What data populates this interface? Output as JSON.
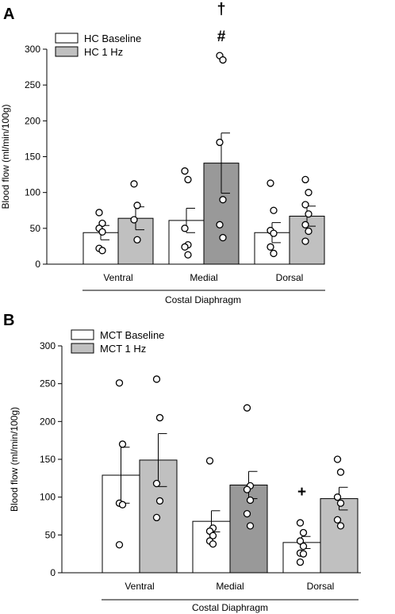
{
  "chart_data": [
    {
      "panel_label": "A",
      "type": "bar",
      "categories": [
        "Ventral",
        "Medial",
        "Dorsal"
      ],
      "xlabel": "Costal Diaphragm",
      "ylabel": "Blood flow (ml/min/100g)",
      "ylim": [
        0,
        300
      ],
      "yticks": [
        0,
        50,
        100,
        150,
        200,
        250,
        300
      ],
      "legend_position": "top-left",
      "series": [
        {
          "name": "HC Baseline",
          "color": "#ffffff",
          "values": [
            44,
            61,
            44
          ],
          "sem": [
            10,
            17,
            14
          ],
          "points": [
            [
              72,
              57,
              50,
              45,
              22,
              19
            ],
            [
              130,
              118,
              50,
              27,
              24,
              13
            ],
            [
              113,
              75,
              47,
              43,
              24,
              15
            ]
          ]
        },
        {
          "name": "HC 1 Hz",
          "color": [
            "#c0c0c0",
            "#999999",
            "#c0c0c0"
          ],
          "values": [
            64,
            141,
            67
          ],
          "sem": [
            16,
            42,
            14
          ],
          "points": [
            [
              112,
              82,
              62,
              34
            ],
            [
              291,
              285,
              170,
              90,
              55,
              37
            ],
            [
              118,
              100,
              83,
              70,
              55,
              46,
              32
            ]
          ]
        }
      ],
      "annotations": [
        {
          "category": "Medial",
          "text": "#"
        },
        {
          "category": "Medial",
          "text": "†"
        }
      ]
    },
    {
      "panel_label": "B",
      "type": "bar",
      "categories": [
        "Ventral",
        "Medial",
        "Dorsal"
      ],
      "xlabel": "Costal Diaphragm",
      "ylabel": "Blood flow (ml/min/100g)",
      "ylim": [
        0,
        300
      ],
      "yticks": [
        0,
        50,
        100,
        150,
        200,
        250,
        300
      ],
      "legend_position": "top-left",
      "series": [
        {
          "name": "MCT Baseline",
          "color": "#ffffff",
          "values": [
            129,
            68,
            40
          ],
          "sem": [
            37,
            14,
            8
          ],
          "points": [
            [
              251,
              170,
              92,
              90,
              37
            ],
            [
              148,
              59,
              55,
              49,
              42,
              38
            ],
            [
              66,
              53,
              42,
              35,
              26,
              25,
              14
            ]
          ]
        },
        {
          "name": "MCT 1 Hz",
          "color": [
            "#c0c0c0",
            "#999999",
            "#c0c0c0"
          ],
          "values": [
            149,
            116,
            98
          ],
          "sem": [
            35,
            18,
            15
          ],
          "points": [
            [
              256,
              205,
              118,
              95,
              73
            ],
            [
              218,
              115,
              110,
              96,
              78,
              62
            ],
            [
              150,
              133,
              100,
              92,
              70,
              62
            ]
          ]
        }
      ],
      "annotations": [
        {
          "category": "Dorsal",
          "text": "+"
        }
      ]
    }
  ]
}
